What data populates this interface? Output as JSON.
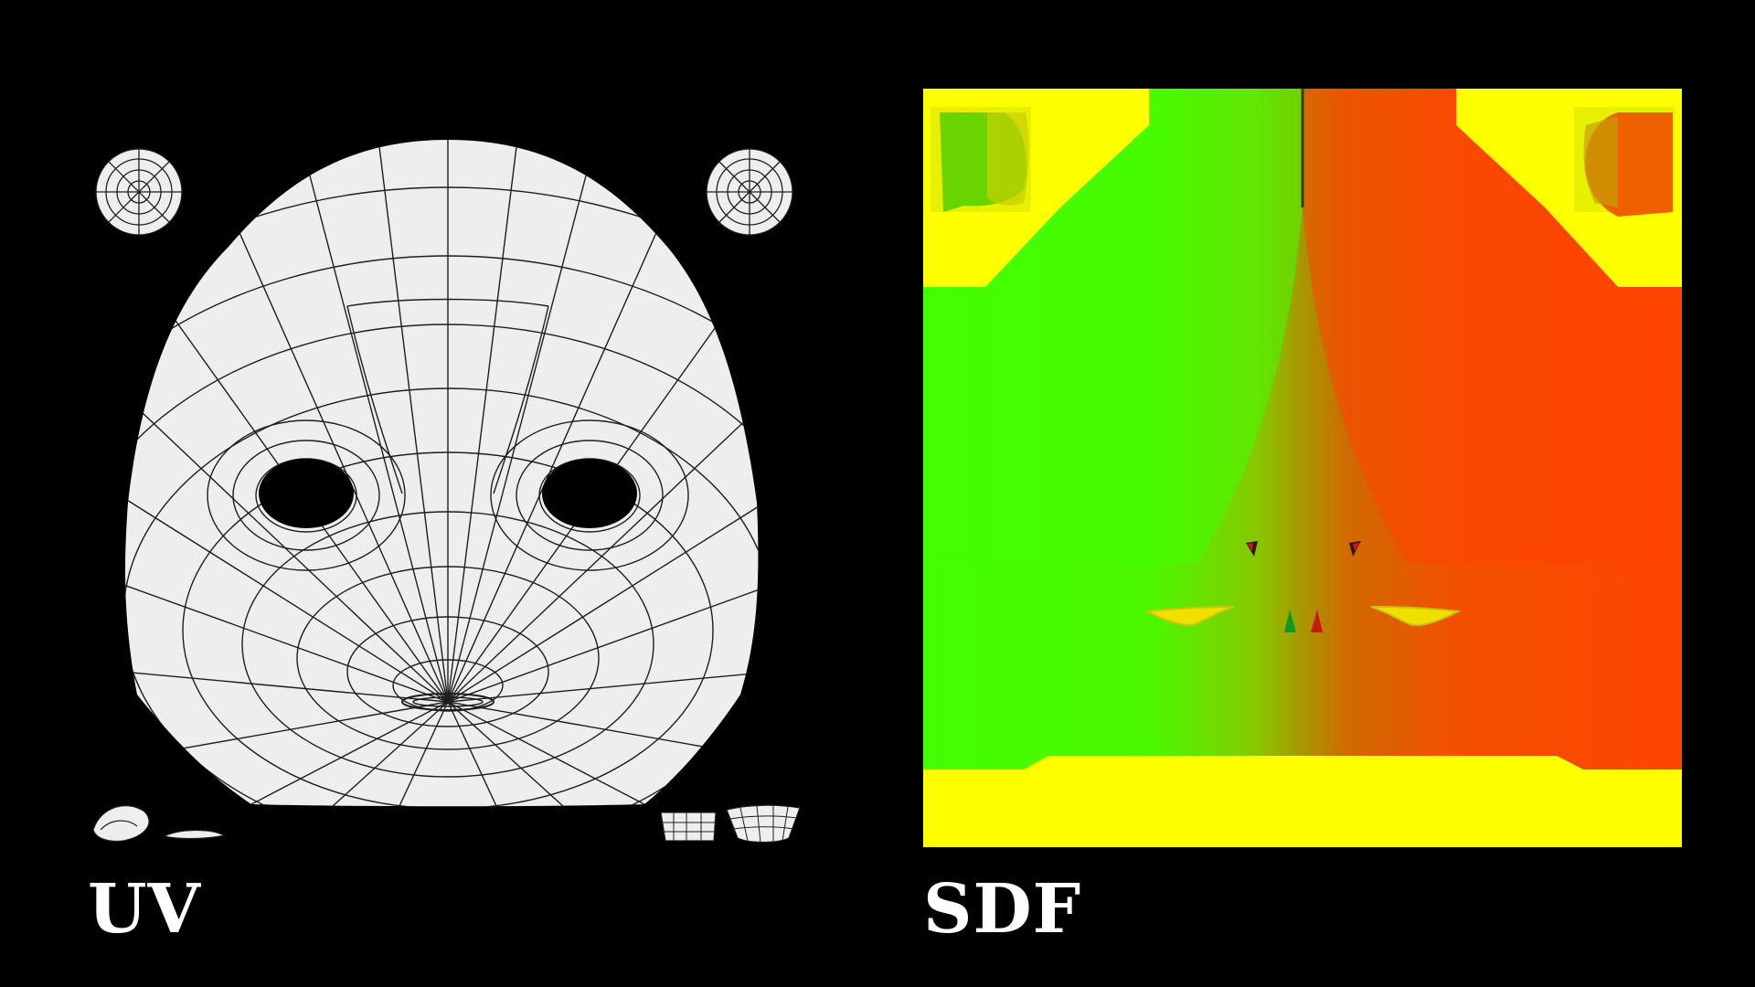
{
  "panels": {
    "uv": {
      "caption": "UV",
      "colors": {
        "background": "#000000",
        "island_fill": "#eeeeee",
        "wire": "#1e1e1e"
      }
    },
    "sdf": {
      "caption": "SDF",
      "colors": {
        "left_half": "#44ff00",
        "right_half": "#ff4400",
        "border": "#ffff00",
        "center_blend": "#9a8a00"
      }
    }
  }
}
